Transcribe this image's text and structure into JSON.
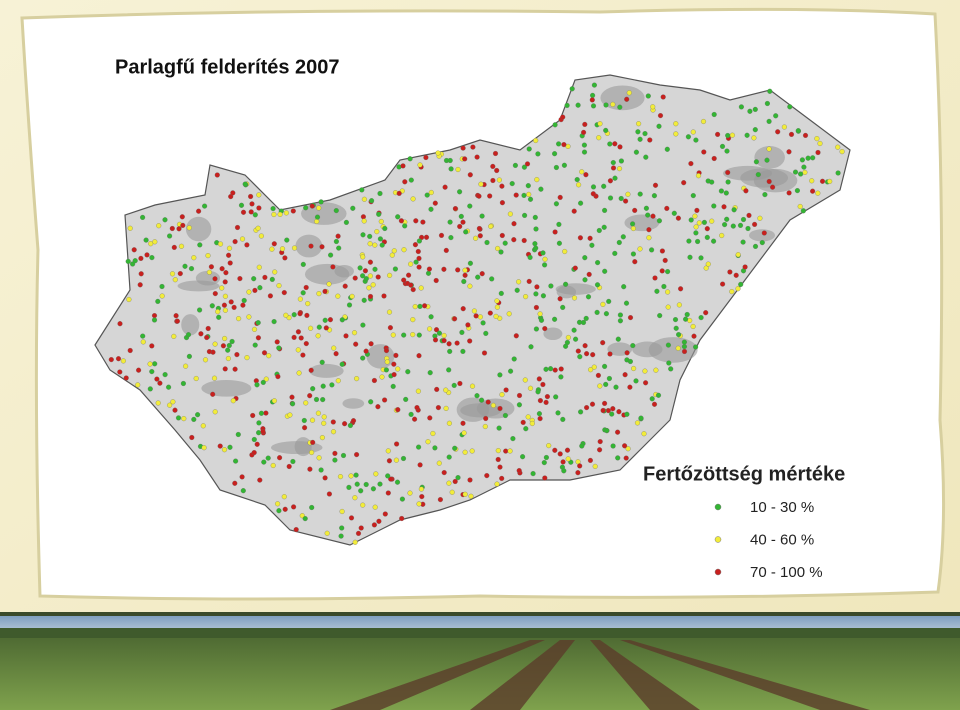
{
  "title": "Parlagfű felderítés 2007",
  "legend": {
    "title": "Fertőzöttség mértéke",
    "items": [
      {
        "label": "10 - 30 %",
        "color": "#33b533"
      },
      {
        "label": "40 - 60 %",
        "color": "#f2ec3a"
      },
      {
        "label": "70 - 100 %",
        "color": "#c8201e"
      }
    ]
  }
}
